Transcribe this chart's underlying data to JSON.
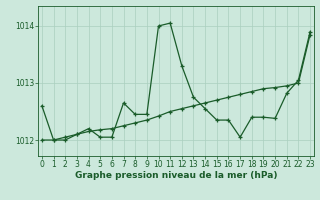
{
  "xlabel": "Graphe pression niveau de la mer (hPa)",
  "background_color": "#cce8dc",
  "grid_color": "#aacfbf",
  "line_color": "#1a5c2a",
  "hours": [
    0,
    1,
    2,
    3,
    4,
    5,
    6,
    7,
    8,
    9,
    10,
    11,
    12,
    13,
    14,
    15,
    16,
    17,
    18,
    19,
    20,
    21,
    22,
    23
  ],
  "line1": [
    1012.6,
    1012.0,
    1012.0,
    1012.1,
    1012.2,
    1012.05,
    1012.05,
    1012.65,
    1012.45,
    1012.45,
    1014.0,
    1014.05,
    1013.3,
    1012.75,
    1012.55,
    1012.35,
    1012.35,
    1012.05,
    1012.4,
    1012.4,
    1012.38,
    1012.82,
    1013.05,
    1013.9
  ],
  "line2": [
    1012.0,
    1012.0,
    1012.05,
    1012.1,
    1012.15,
    1012.18,
    1012.2,
    1012.25,
    1012.3,
    1012.35,
    1012.42,
    1012.5,
    1012.55,
    1012.6,
    1012.65,
    1012.7,
    1012.75,
    1012.8,
    1012.85,
    1012.9,
    1012.92,
    1012.95,
    1013.0,
    1013.85
  ],
  "ylim_min": 1011.72,
  "ylim_max": 1014.35,
  "yticks": [
    1012,
    1013,
    1014
  ],
  "xlim_min": -0.3,
  "xlim_max": 23.3,
  "tick_fontsize": 5.5,
  "label_fontsize": 6.5,
  "marker_size": 3.5,
  "linewidth": 0.9
}
